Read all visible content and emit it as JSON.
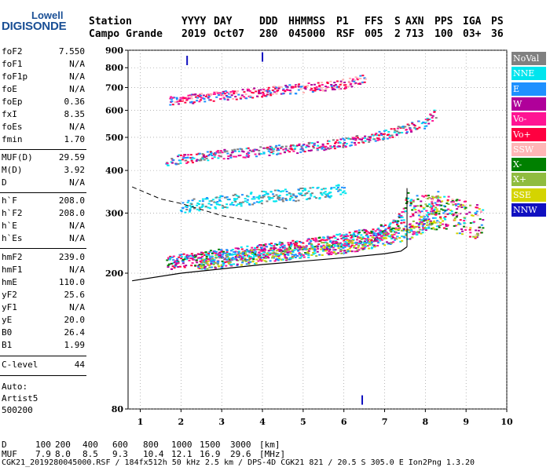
{
  "logo": {
    "line1": "Lowell",
    "line2": "DIGISONDE"
  },
  "header": {
    "cols": [
      {
        "label": "Station",
        "value": "Campo Grande"
      },
      {
        "label": "YYYY",
        "value": "2019"
      },
      {
        "label": "DAY",
        "value": "Oct07"
      },
      {
        "label": "DDD",
        "value": "280"
      },
      {
        "label": "HHMMSS",
        "value": "045000"
      },
      {
        "label": "P1",
        "value": "RSF"
      },
      {
        "label": "FFS",
        "value": "005"
      },
      {
        "label": "S",
        "value": "2"
      },
      {
        "label": "AXN",
        "value": "713"
      },
      {
        "label": "PPS",
        "value": "100"
      },
      {
        "label": "IGA",
        "value": "03+"
      },
      {
        "label": "PS",
        "value": "36"
      }
    ]
  },
  "params": [
    {
      "label": "foF2",
      "value": "7.550"
    },
    {
      "label": "foF1",
      "value": "N/A"
    },
    {
      "label": "foF1p",
      "value": "N/A"
    },
    {
      "label": "foE",
      "value": "N/A"
    },
    {
      "label": "foEp",
      "value": "0.36"
    },
    {
      "label": "fxI",
      "value": "8.35"
    },
    {
      "label": "foEs",
      "value": "N/A"
    },
    {
      "label": "fmin",
      "value": "1.70"
    },
    {
      "label": "MUF(D)",
      "value": "29.59"
    },
    {
      "label": "M(D)",
      "value": "3.92"
    },
    {
      "label": "D",
      "value": "N/A"
    },
    {
      "label": "h`F",
      "value": "208.0"
    },
    {
      "label": "h`F2",
      "value": "208.0"
    },
    {
      "label": "h`E",
      "value": "N/A"
    },
    {
      "label": "h`Es",
      "value": "N/A"
    },
    {
      "label": "hmF2",
      "value": "239.0"
    },
    {
      "label": "hmF1",
      "value": "N/A"
    },
    {
      "label": "hmE",
      "value": "110.0"
    },
    {
      "label": "yF2",
      "value": "25.6"
    },
    {
      "label": "yF1",
      "value": "N/A"
    },
    {
      "label": "yE",
      "value": "20.0"
    },
    {
      "label": "B0",
      "value": "26.4"
    },
    {
      "label": "B1",
      "value": "1.99"
    },
    {
      "label": "C-level",
      "value": "44"
    }
  ],
  "auto": {
    "line1": "Auto:",
    "line2": "Artist5",
    "line3": "500200"
  },
  "legend": [
    {
      "label": "NoVal",
      "color": "#808080"
    },
    {
      "label": "NNE",
      "color": "#00e5ee"
    },
    {
      "label": "E",
      "color": "#1e90ff"
    },
    {
      "label": "W",
      "color": "#b0009a"
    },
    {
      "label": "Vo-",
      "color": "#ff1493"
    },
    {
      "label": "Vo+",
      "color": "#ff0040"
    },
    {
      "label": "SSW",
      "color": "#ffb6b6"
    },
    {
      "label": "X-",
      "color": "#008000"
    },
    {
      "label": "X+",
      "color": "#8fbc3f"
    },
    {
      "label": "SSE",
      "color": "#d4d400"
    },
    {
      "label": "NNW",
      "color": "#1010c0"
    }
  ],
  "footer": {
    "d_label": "D",
    "d_values": [
      "100",
      "200",
      "400",
      "600",
      "800",
      "1000",
      "1500",
      "3000",
      "[km]"
    ],
    "muf_label": "MUF",
    "muf_values": [
      "7.9",
      "8.0",
      "8.5",
      "9.3",
      "10.4",
      "12.1",
      "16.9",
      "29.6",
      "[MHz]"
    ],
    "info": "CGK21_2019280045000.RSF / 184fx512h 50 kHz 2.5 km / DPS-4D CGK21 821 / 20.5 S 305.0 E Ion2Png 1.3.20"
  },
  "chart_data": {
    "type": "scatter",
    "title": "",
    "xlabel": "",
    "ylabel": "",
    "xlim": [
      0.7,
      10
    ],
    "ylim": [
      80,
      900
    ],
    "y_scale": "log",
    "x_ticks": [
      1,
      2,
      3,
      4,
      5,
      6,
      7,
      8,
      9,
      10
    ],
    "y_ticks": [
      80,
      200,
      300,
      400,
      500,
      600,
      700,
      800,
      900
    ],
    "grid": true,
    "traces": [
      {
        "name": "F2 O-trace",
        "x": [
          1.65,
          2.0,
          3.0,
          4.0,
          5.0,
          6.0,
          6.8,
          7.2,
          7.45,
          7.55
        ],
        "y": [
          208,
          210,
          218,
          225,
          232,
          242,
          253,
          265,
          285,
          335
        ]
      },
      {
        "name": "F2 X-trace",
        "x": [
          2.4,
          3.0,
          4.0,
          5.0,
          6.0,
          7.0,
          7.6,
          8.0,
          8.2,
          8.35
        ],
        "y": [
          208,
          211,
          218,
          225,
          232,
          244,
          256,
          270,
          290,
          330
        ]
      },
      {
        "name": "F2 2nd hop",
        "x": [
          1.6,
          2.0,
          3.0,
          4.0,
          5.0,
          6.0,
          7.0,
          7.5,
          8.0,
          8.25
        ],
        "y": [
          418,
          425,
          438,
          448,
          458,
          475,
          500,
          520,
          542,
          578
        ]
      },
      {
        "name": "F2 3rd hop",
        "x": [
          1.7,
          2.0,
          3.0,
          4.0,
          5.0,
          6.0,
          6.5
        ],
        "y": [
          628,
          632,
          650,
          668,
          685,
          705,
          728
        ]
      },
      {
        "name": "Spread F",
        "x": [
          2.0,
          3.0,
          4.0,
          5.0,
          6.0
        ],
        "y": [
          305,
          315,
          325,
          332,
          340
        ]
      }
    ],
    "profile": {
      "x": [
        0.8,
        2.0,
        4.0,
        6.0,
        7.0,
        7.4,
        7.55
      ],
      "y": [
        190,
        200,
        212,
        222,
        228,
        232,
        239
      ]
    },
    "muf_curve": {
      "x": [
        0.8,
        1.5,
        2.0,
        3.0,
        4.0,
        4.6
      ],
      "y": [
        358,
        330,
        320,
        295,
        280,
        270
      ]
    },
    "outliers": [
      {
        "x": 2.15,
        "y": 840
      },
      {
        "x": 4.0,
        "y": 860
      },
      {
        "x": 6.45,
        "y": 85
      }
    ]
  }
}
